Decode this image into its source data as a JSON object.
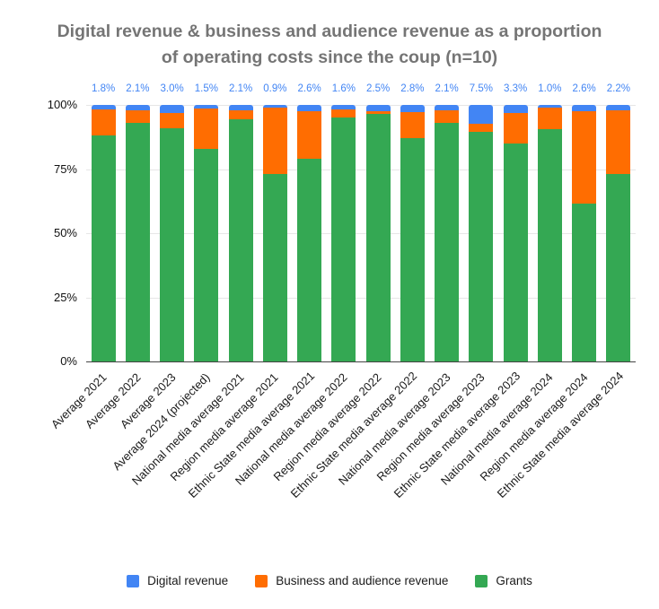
{
  "header": {
    "title_line1": "Digital revenue & business and audience revenue as a proportion",
    "title_line2": "of operating costs since the coup (n=10)"
  },
  "chart_data": {
    "type": "bar",
    "stacked": true,
    "title": "Digital revenue & business and audience revenue as a proportion of operating costs since the coup (n=10)",
    "sample_size_note": "n=10",
    "categories": [
      "Average 2021",
      "Average 2022",
      "Average 2023",
      "Average 2024 (projected)",
      "National media average 2021",
      "Region media average 2021",
      "Ethnic State media average 2021",
      "National media average 2022",
      "Region media average 2022",
      "Ethnic State media average 2022",
      "National media average 2023",
      "Region media average 2023",
      "Ethnic State media average 2023",
      "National media average 2024",
      "Region media average 2024",
      "Ethnic State media average 2024"
    ],
    "series": [
      {
        "name": "Digital revenue",
        "color": "#4285f4",
        "values": [
          1.8,
          2.1,
          3.0,
          1.5,
          2.1,
          0.9,
          2.6,
          1.6,
          2.5,
          2.8,
          2.1,
          7.5,
          3.3,
          1.0,
          2.6,
          2.2
        ]
      },
      {
        "name": "Business and audience revenue",
        "color": "#ff6d01",
        "values": [
          10.2,
          4.9,
          6.0,
          15.5,
          3.4,
          26.1,
          18.4,
          3.4,
          1.0,
          10.2,
          4.9,
          3.0,
          11.7,
          8.5,
          35.9,
          24.8
        ]
      },
      {
        "name": "Grants",
        "color": "#34a853",
        "values": [
          88.0,
          93.0,
          91.0,
          83.0,
          94.5,
          73.0,
          79.0,
          95.0,
          96.5,
          87.0,
          93.0,
          89.5,
          85.0,
          90.5,
          61.5,
          73.0
        ]
      }
    ],
    "bar_labels": [
      "1.8%",
      "2.1%",
      "3.0%",
      "1.5%",
      "2.1%",
      "0.9%",
      "2.6%",
      "1.6%",
      "2.5%",
      "2.8%",
      "2.1%",
      "7.5%",
      "3.3%",
      "1.0%",
      "2.6%",
      "2.2%"
    ],
    "bar_labels_color": "#4285f4",
    "y_ticks": [
      "100%",
      "75%",
      "50%",
      "25%",
      "0%"
    ],
    "ylim": [
      0,
      100
    ],
    "grid": true,
    "legend_position": "bottom",
    "xlabel": "",
    "ylabel": ""
  },
  "style": {
    "title_color": "#757575",
    "axis_label_color": "#1a1a1a",
    "gridline_color": "#e6e6e6",
    "axis_line_color": "#444444",
    "background": "#ffffff"
  }
}
